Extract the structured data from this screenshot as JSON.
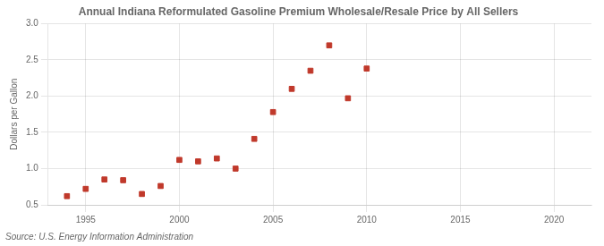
{
  "chart_data": {
    "type": "scatter",
    "title": "Annual Indiana Reformulated Gasoline Premium Wholesale/Resale Price by All Sellers",
    "ylabel": "Dollars per Gallon",
    "annotations": [
      "Source: U.S. Energy Information Administration"
    ],
    "x": [
      1994,
      1995,
      1996,
      1997,
      1998,
      1999,
      2000,
      2001,
      2002,
      2003,
      2004,
      2005,
      2006,
      2007,
      2008,
      2009,
      2010
    ],
    "values": [
      0.62,
      0.72,
      0.85,
      0.84,
      0.65,
      0.76,
      1.12,
      1.1,
      1.14,
      1.0,
      1.41,
      1.78,
      2.1,
      2.35,
      2.7,
      1.97,
      2.38
    ],
    "color": "#c0392b",
    "marker": "square",
    "xlim": [
      1993,
      2022
    ],
    "xticks": [
      1995,
      2000,
      2005,
      2010,
      2015,
      2020
    ],
    "ylim": [
      0.5,
      3.0
    ],
    "yticks": [
      0.5,
      {
        "value": 1,
        "label": "1.0"
      },
      1.5,
      {
        "value": 2,
        "label": "2.0"
      },
      2.5,
      {
        "value": 3,
        "label": "3.0"
      }
    ],
    "grid": true
  }
}
